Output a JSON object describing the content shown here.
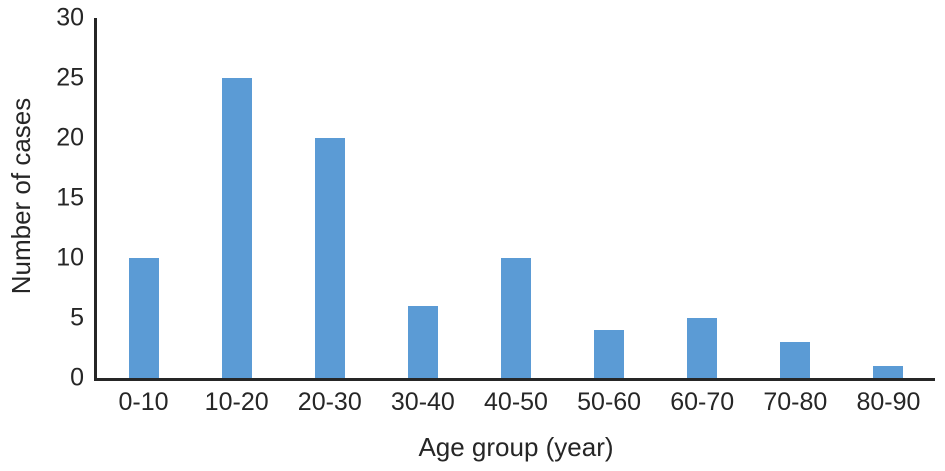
{
  "chart_data": {
    "type": "bar",
    "categories": [
      "0-10",
      "10-20",
      "20-30",
      "30-40",
      "40-50",
      "50-60",
      "60-70",
      "70-80",
      "80-90"
    ],
    "values": [
      10,
      25,
      20,
      6,
      10,
      4,
      5,
      3,
      1
    ],
    "xlabel": "Age group (year)",
    "ylabel": "Number of cases",
    "ylim": [
      0,
      30
    ],
    "yticks": [
      0,
      5,
      10,
      15,
      20,
      25,
      30
    ],
    "grid": false,
    "legend": "none",
    "colors": {
      "bar": "#5B9BD5",
      "axis": "#262626",
      "text": "#262626",
      "background": "#FFFFFF"
    }
  }
}
